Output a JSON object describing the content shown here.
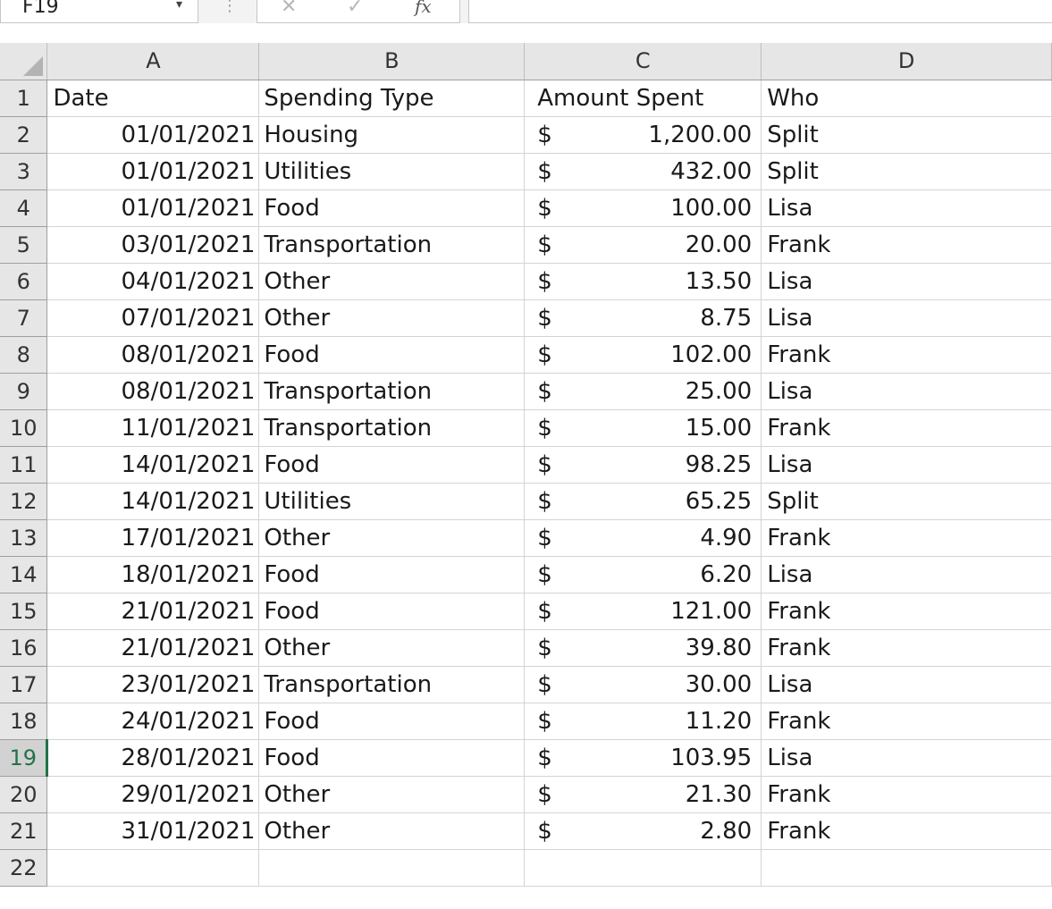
{
  "formula_bar": {
    "name_box": "F19",
    "fx_label": "fx",
    "formula": ""
  },
  "columns": [
    "A",
    "B",
    "C",
    "D"
  ],
  "header_row": {
    "row_number": "1",
    "date": "Date",
    "spending_type": "Spending Type",
    "amount_spent": "Amount Spent",
    "who": "Who"
  },
  "rows": [
    {
      "n": "2",
      "date": "01/01/2021",
      "type": "Housing",
      "cur": "$",
      "amount": "1,200.00",
      "who": "Split"
    },
    {
      "n": "3",
      "date": "01/01/2021",
      "type": "Utilities",
      "cur": "$",
      "amount": "432.00",
      "who": "Split"
    },
    {
      "n": "4",
      "date": "01/01/2021",
      "type": "Food",
      "cur": "$",
      "amount": "100.00",
      "who": "Lisa"
    },
    {
      "n": "5",
      "date": "03/01/2021",
      "type": "Transportation",
      "cur": "$",
      "amount": "20.00",
      "who": "Frank"
    },
    {
      "n": "6",
      "date": "04/01/2021",
      "type": "Other",
      "cur": "$",
      "amount": "13.50",
      "who": "Lisa"
    },
    {
      "n": "7",
      "date": "07/01/2021",
      "type": "Other",
      "cur": "$",
      "amount": "8.75",
      "who": "Lisa"
    },
    {
      "n": "8",
      "date": "08/01/2021",
      "type": "Food",
      "cur": "$",
      "amount": "102.00",
      "who": "Frank"
    },
    {
      "n": "9",
      "date": "08/01/2021",
      "type": "Transportation",
      "cur": "$",
      "amount": "25.00",
      "who": "Lisa"
    },
    {
      "n": "10",
      "date": "11/01/2021",
      "type": "Transportation",
      "cur": "$",
      "amount": "15.00",
      "who": "Frank"
    },
    {
      "n": "11",
      "date": "14/01/2021",
      "type": "Food",
      "cur": "$",
      "amount": "98.25",
      "who": "Lisa"
    },
    {
      "n": "12",
      "date": "14/01/2021",
      "type": "Utilities",
      "cur": "$",
      "amount": "65.25",
      "who": "Split"
    },
    {
      "n": "13",
      "date": "17/01/2021",
      "type": "Other",
      "cur": "$",
      "amount": "4.90",
      "who": "Frank"
    },
    {
      "n": "14",
      "date": "18/01/2021",
      "type": "Food",
      "cur": "$",
      "amount": "6.20",
      "who": "Lisa"
    },
    {
      "n": "15",
      "date": "21/01/2021",
      "type": "Food",
      "cur": "$",
      "amount": "121.00",
      "who": "Frank"
    },
    {
      "n": "16",
      "date": "21/01/2021",
      "type": "Other",
      "cur": "$",
      "amount": "39.80",
      "who": "Frank"
    },
    {
      "n": "17",
      "date": "23/01/2021",
      "type": "Transportation",
      "cur": "$",
      "amount": "30.00",
      "who": "Lisa"
    },
    {
      "n": "18",
      "date": "24/01/2021",
      "type": "Food",
      "cur": "$",
      "amount": "11.20",
      "who": "Frank"
    },
    {
      "n": "19",
      "date": "28/01/2021",
      "type": "Food",
      "cur": "$",
      "amount": "103.95",
      "who": "Lisa"
    },
    {
      "n": "20",
      "date": "29/01/2021",
      "type": "Other",
      "cur": "$",
      "amount": "21.30",
      "who": "Frank"
    },
    {
      "n": "21",
      "date": "31/01/2021",
      "type": "Other",
      "cur": "$",
      "amount": "2.80",
      "who": "Frank"
    }
  ],
  "empty_row": {
    "n": "22"
  },
  "active_row": "19",
  "colors": {
    "accent": "#217346",
    "header_bg": "#e6e6e6",
    "gridline": "#d4d4d4"
  }
}
